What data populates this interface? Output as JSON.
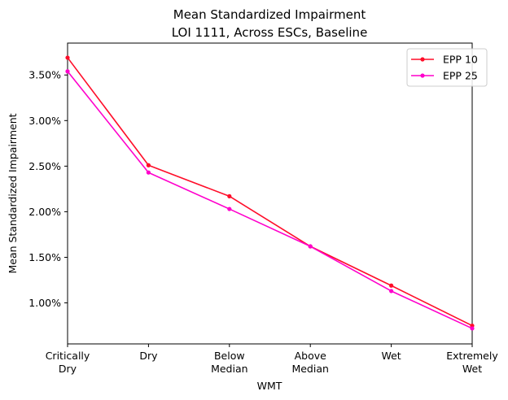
{
  "chart_data": {
    "type": "line",
    "title": "Mean Standardized Impairment",
    "subtitle": "LOI 1111, Across ESCs, Baseline",
    "xlabel": "WMT",
    "ylabel": "Mean Standardized Impairment",
    "categories": [
      [
        "Critically",
        "Dry"
      ],
      [
        "Dry"
      ],
      [
        "Below",
        "Median"
      ],
      [
        "Above",
        "Median"
      ],
      [
        "Wet"
      ],
      [
        "Extremely",
        "Wet"
      ]
    ],
    "ylim": [
      0.0055,
      0.0385
    ],
    "yticks": [
      0.01,
      0.015,
      0.02,
      0.025,
      0.03,
      0.035
    ],
    "ytick_labels": [
      "1.00%",
      "1.50%",
      "2.00%",
      "2.50%",
      "3.00%",
      "3.50%"
    ],
    "series": [
      {
        "name": "EPP 10",
        "color": "#ff0d29",
        "values": [
          0.0369,
          0.0251,
          0.0217,
          0.0162,
          0.0119,
          0.0075
        ]
      },
      {
        "name": "EPP 25",
        "color": "#ff00cc",
        "values": [
          0.0354,
          0.0243,
          0.0203,
          0.0162,
          0.0113,
          0.0072
        ]
      }
    ],
    "legend": "top-right",
    "grid": false
  }
}
